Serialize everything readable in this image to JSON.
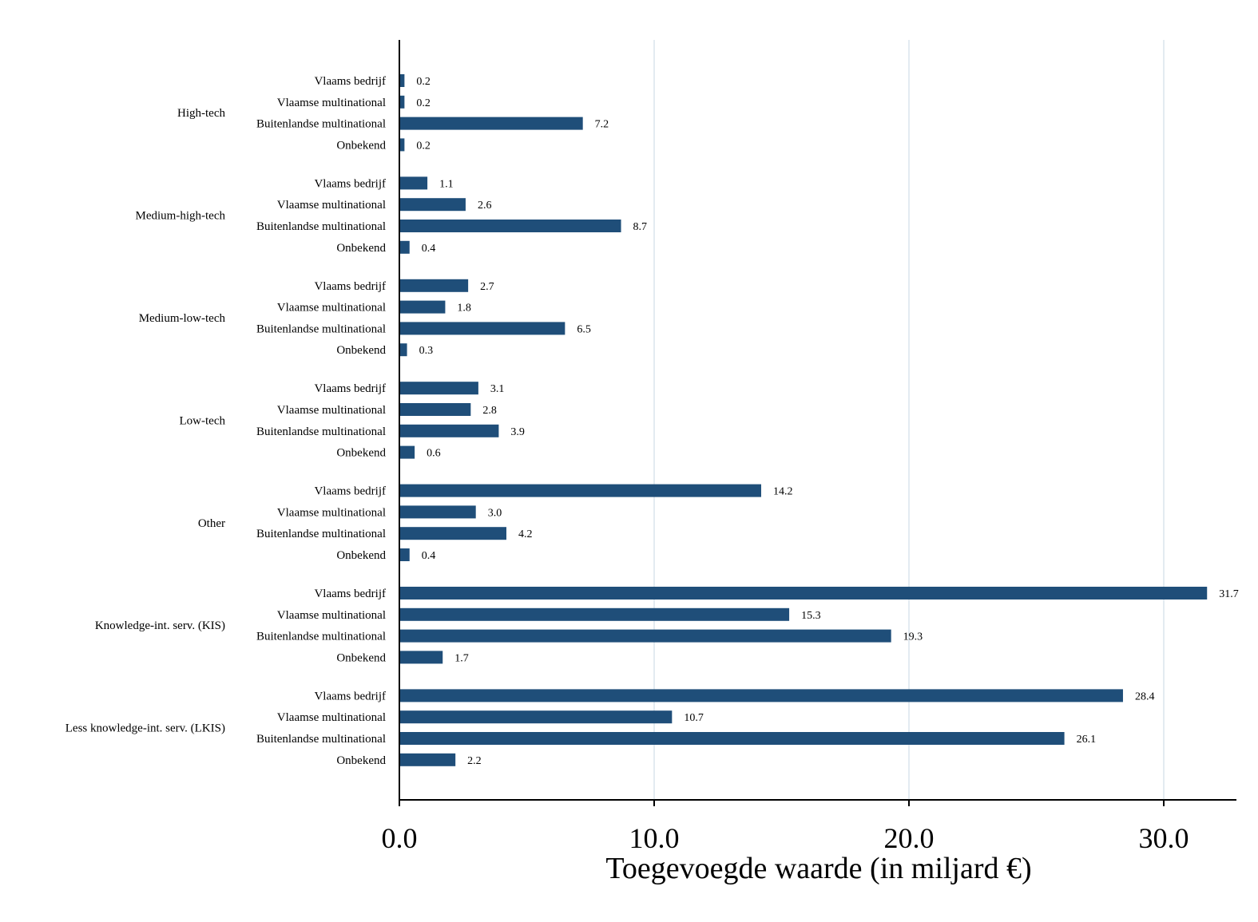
{
  "chart_data": {
    "type": "bar",
    "orientation": "horizontal",
    "xlabel": "Toegevoegde waarde (in miljard €)",
    "ylabel": "",
    "xlim": [
      0,
      33
    ],
    "xticks": [
      0,
      10,
      20,
      30
    ],
    "xtick_labels": [
      "0.0",
      "10.0",
      "20.0",
      "30.0"
    ],
    "grid": "vertical",
    "bar_color": "#1f4e79",
    "grid_color": "#e3ebf1",
    "subcategories": [
      "Vlaams bedrijf",
      "Vlaamse multinational",
      "Buitenlandse multinational",
      "Onbekend"
    ],
    "groups": [
      {
        "name": "High-tech",
        "values": [
          0.2,
          0.2,
          7.2,
          0.2
        ],
        "labels": [
          "0.2",
          "0.2",
          "7.2",
          "0.2"
        ]
      },
      {
        "name": "Medium-high-tech",
        "values": [
          1.1,
          2.6,
          8.7,
          0.4
        ],
        "labels": [
          "1.1",
          "2.6",
          "8.7",
          "0.4"
        ]
      },
      {
        "name": "Medium-low-tech",
        "values": [
          2.7,
          1.8,
          6.5,
          0.3
        ],
        "labels": [
          "2.7",
          "1.8",
          "6.5",
          "0.3"
        ]
      },
      {
        "name": "Low-tech",
        "values": [
          3.1,
          2.8,
          3.9,
          0.6
        ],
        "labels": [
          "3.1",
          "2.8",
          "3.9",
          "0.6"
        ]
      },
      {
        "name": "Other",
        "values": [
          14.2,
          3.0,
          4.2,
          0.4
        ],
        "labels": [
          "14.2",
          "3.0",
          "4.2",
          "0.4"
        ]
      },
      {
        "name": "Knowledge-int. serv. (KIS)",
        "values": [
          31.7,
          15.3,
          19.3,
          1.7
        ],
        "labels": [
          "31.7",
          "15.3",
          "19.3",
          "1.7"
        ]
      },
      {
        "name": "Less knowledge-int. serv. (LKIS)",
        "values": [
          28.4,
          10.7,
          26.1,
          2.2
        ],
        "labels": [
          "28.4",
          "10.7",
          "26.1",
          "2.2"
        ]
      }
    ]
  }
}
